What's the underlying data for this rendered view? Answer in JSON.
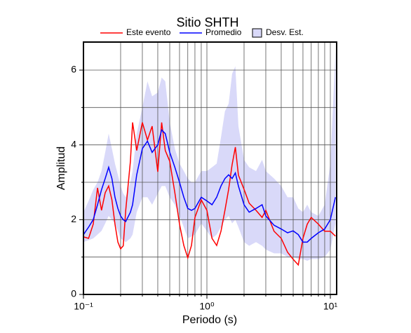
{
  "chart_data": {
    "type": "line",
    "title": "Sitio SHTH",
    "xlabel": "Periodo (s)",
    "ylabel": "Amplitud",
    "xscale": "log",
    "xlim": [
      0.1,
      11.25
    ],
    "ylim": [
      0,
      6.75
    ],
    "xticks": [
      {
        "value": 0.1,
        "label": "10⁻¹"
      },
      {
        "value": 1,
        "label": "10⁰"
      },
      {
        "value": 10,
        "label": "10¹"
      }
    ],
    "xminorticks": [
      0.2,
      0.3,
      0.4,
      0.5,
      0.6,
      0.7,
      0.8,
      0.9,
      2,
      3,
      4,
      5,
      6,
      7,
      8,
      9
    ],
    "yticks": [
      0,
      2,
      4,
      6
    ],
    "yminorticks": [
      1,
      3,
      5
    ],
    "grid": true,
    "x": [
      0.1,
      0.11,
      0.12,
      0.13,
      0.14,
      0.15,
      0.16,
      0.17,
      0.18,
      0.19,
      0.2,
      0.21,
      0.22,
      0.24,
      0.25,
      0.27,
      0.3,
      0.33,
      0.36,
      0.4,
      0.43,
      0.46,
      0.5,
      0.55,
      0.6,
      0.65,
      0.7,
      0.75,
      0.8,
      0.9,
      1.0,
      1.1,
      1.2,
      1.3,
      1.4,
      1.5,
      1.6,
      1.7,
      1.8,
      2.0,
      2.2,
      2.5,
      2.8,
      3.0,
      3.5,
      4.0,
      4.5,
      5.0,
      5.5,
      6.0,
      6.5,
      7.0,
      8.0,
      9.0,
      10,
      11
    ],
    "series": [
      {
        "name": "Este evento",
        "color": "#ff0000",
        "values": [
          1.54,
          1.5,
          1.88,
          2.85,
          2.25,
          2.72,
          2.9,
          2.53,
          1.88,
          1.4,
          1.22,
          1.3,
          2.25,
          3.56,
          4.6,
          3.85,
          4.6,
          4.13,
          4.5,
          3.28,
          4.6,
          3.85,
          3.56,
          2.72,
          1.88,
          1.31,
          0.98,
          1.31,
          2.06,
          2.53,
          2.25,
          1.5,
          1.31,
          1.69,
          2.25,
          2.81,
          3.47,
          3.94,
          3.19,
          2.81,
          2.44,
          2.25,
          2.06,
          2.25,
          1.69,
          1.5,
          1.13,
          0.94,
          0.79,
          1.5,
          1.88,
          2.06,
          1.88,
          1.69,
          1.69,
          1.56
        ]
      },
      {
        "name": "Promedio",
        "color": "#0000ff",
        "values": [
          1.6,
          1.8,
          2.0,
          2.4,
          2.8,
          3.1,
          3.4,
          3.1,
          2.6,
          2.3,
          2.1,
          2.0,
          1.95,
          2.2,
          2.4,
          3.2,
          3.9,
          4.1,
          3.8,
          4.0,
          4.4,
          4.3,
          3.8,
          3.4,
          3.0,
          2.6,
          2.3,
          2.25,
          2.3,
          2.6,
          2.5,
          2.4,
          2.6,
          2.9,
          3.1,
          3.2,
          3.1,
          3.25,
          2.9,
          2.4,
          2.2,
          2.3,
          2.4,
          2.1,
          1.85,
          1.75,
          1.65,
          1.7,
          1.6,
          1.4,
          1.4,
          1.5,
          1.65,
          1.75,
          2.0,
          2.6
        ]
      }
    ],
    "band": {
      "name": "Desv. Est.",
      "color": "#d9d9f9",
      "upper": [
        2.2,
        2.5,
        2.8,
        3.0,
        3.3,
        3.8,
        4.3,
        3.9,
        3.5,
        3.2,
        2.9,
        2.7,
        2.6,
        3.0,
        3.3,
        4.3,
        5.0,
        5.7,
        5.3,
        5.4,
        5.8,
        5.7,
        4.6,
        3.9,
        3.5,
        3.3,
        3.1,
        3.0,
        3.0,
        3.3,
        3.3,
        3.4,
        3.5,
        4.2,
        4.9,
        5.1,
        5.9,
        6.1,
        4.5,
        3.6,
        3.4,
        3.3,
        3.6,
        3.3,
        3.1,
        2.9,
        2.6,
        2.6,
        2.3,
        2.2,
        2.4,
        2.2,
        2.1,
        2.4,
        3.5,
        6.5
      ],
      "lower": [
        1.4,
        1.45,
        1.5,
        1.6,
        1.7,
        1.9,
        2.1,
        2.0,
        1.9,
        1.7,
        1.5,
        1.45,
        1.4,
        1.5,
        1.6,
        2.2,
        2.6,
        2.6,
        2.4,
        2.7,
        2.9,
        2.9,
        2.6,
        2.4,
        2.1,
        1.8,
        1.5,
        1.55,
        1.6,
        1.9,
        1.7,
        1.5,
        1.6,
        1.8,
        2.0,
        2.1,
        1.9,
        2.0,
        1.8,
        1.4,
        1.3,
        1.4,
        1.3,
        1.2,
        1.1,
        1.1,
        1.0,
        1.0,
        0.95,
        0.95,
        0.9,
        0.95,
        0.95,
        1.0,
        1.2,
        1.9
      ]
    }
  }
}
